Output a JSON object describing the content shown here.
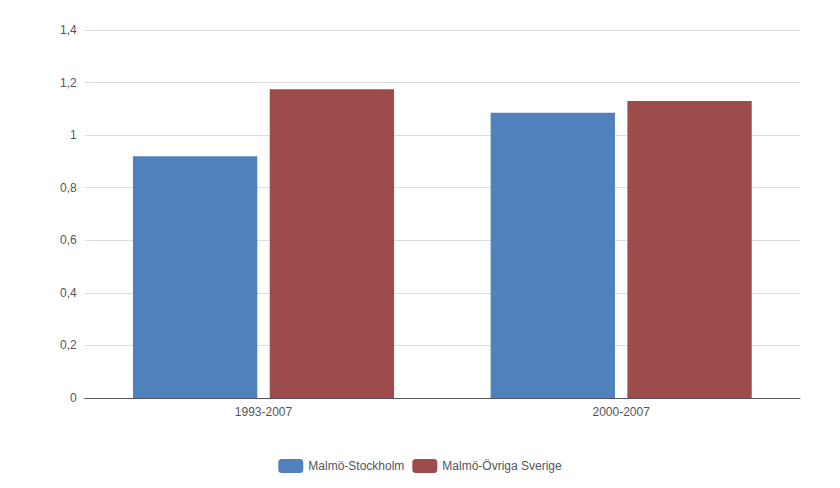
{
  "chart_data": {
    "type": "bar",
    "categories": [
      "1993-2007",
      "2000-2007"
    ],
    "series": [
      {
        "name": "Malmö-Stockholm",
        "color": "#4F81BD",
        "values": [
          0.92,
          1.085
        ]
      },
      {
        "name": "Malmö-Övriga Sverige",
        "color": "#9E4B4B",
        "values": [
          1.175,
          1.13
        ]
      }
    ],
    "ylim": [
      0,
      1.4
    ],
    "yticks": [
      0,
      {
        "value": 0.2,
        "label": "0,2"
      },
      {
        "value": 0.4,
        "label": "0,4"
      },
      {
        "value": 0.6,
        "label": "0,6"
      },
      {
        "value": 0.8,
        "label": "0,8"
      },
      1,
      {
        "value": 1.2,
        "label": "1,2"
      },
      {
        "value": 1.4,
        "label": "1,4"
      }
    ],
    "grid": true,
    "legend": "bottom"
  }
}
